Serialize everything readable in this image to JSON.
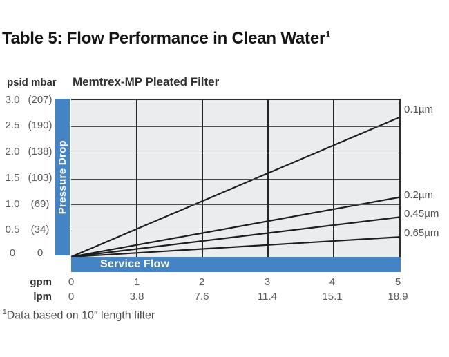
{
  "page": {
    "title": "Table 5: Flow Performance in Clean Water",
    "title_superscript": "1",
    "footnote_superscript": "1",
    "footnote": "Data based on 10″ length filter"
  },
  "chart": {
    "subtitle": "Memtrex-MP Pleated Filter",
    "y_units_header": "psid mbar",
    "y_axis_label": "Pressure Drop",
    "x_axis_label": "Service Flow",
    "y_ticks": [
      {
        "psid": "3.0",
        "mbar": "(207)"
      },
      {
        "psid": "2.5",
        "mbar": "(190)"
      },
      {
        "psid": "2.0",
        "mbar": "(138)"
      },
      {
        "psid": "1.5",
        "mbar": "(103)"
      },
      {
        "psid": "1.0",
        "mbar": "(69)"
      },
      {
        "psid": "0.5",
        "mbar": "(34)"
      },
      {
        "psid": "0",
        "mbar": "0"
      }
    ],
    "x_rows": [
      {
        "unit": "gpm",
        "values": [
          "0",
          "1",
          "2",
          "3",
          "4",
          "5"
        ]
      },
      {
        "unit": "lpm",
        "values": [
          "0",
          "3.8",
          "7.6",
          "11.4",
          "15.1",
          "18.9"
        ]
      }
    ],
    "series_labels": [
      "0.1µm",
      "0.2µm",
      "0.45µm",
      "0.65µm"
    ],
    "colors": {
      "accent_blue": "#4484c4",
      "plot_background": "#ebecee",
      "grid_line": "#4e4e4e",
      "data_line": "#1e1e1e"
    }
  },
  "chart_data": {
    "type": "line",
    "title": "Memtrex-MP Pleated Filter",
    "xlabel": "Service Flow",
    "ylabel": "Pressure Drop",
    "x_axis_units": [
      "gpm",
      "lpm"
    ],
    "x_ticks_gpm": [
      0,
      1,
      2,
      3,
      4,
      5
    ],
    "x_ticks_lpm": [
      0,
      3.8,
      7.6,
      11.4,
      15.1,
      18.9
    ],
    "y_ticks_psid": [
      0,
      0.5,
      1.0,
      1.5,
      2.0,
      2.5,
      3.0
    ],
    "y_ticks_mbar": [
      0,
      34,
      69,
      103,
      138,
      190,
      207
    ],
    "xlim": [
      0,
      5
    ],
    "ylim": [
      0,
      3.0
    ],
    "grid": true,
    "legend_position": "right",
    "series": [
      {
        "name": "0.1µm",
        "x_gpm": [
          0,
          5
        ],
        "y_psid": [
          0,
          2.67
        ]
      },
      {
        "name": "0.2µm",
        "x_gpm": [
          0,
          5
        ],
        "y_psid": [
          0,
          1.14
        ]
      },
      {
        "name": "0.45µm",
        "x_gpm": [
          0,
          5
        ],
        "y_psid": [
          0,
          0.76
        ]
      },
      {
        "name": "0.65µm",
        "x_gpm": [
          0,
          5
        ],
        "y_psid": [
          0,
          0.38
        ]
      }
    ],
    "footnote": "Data based on 10″ length filter"
  }
}
